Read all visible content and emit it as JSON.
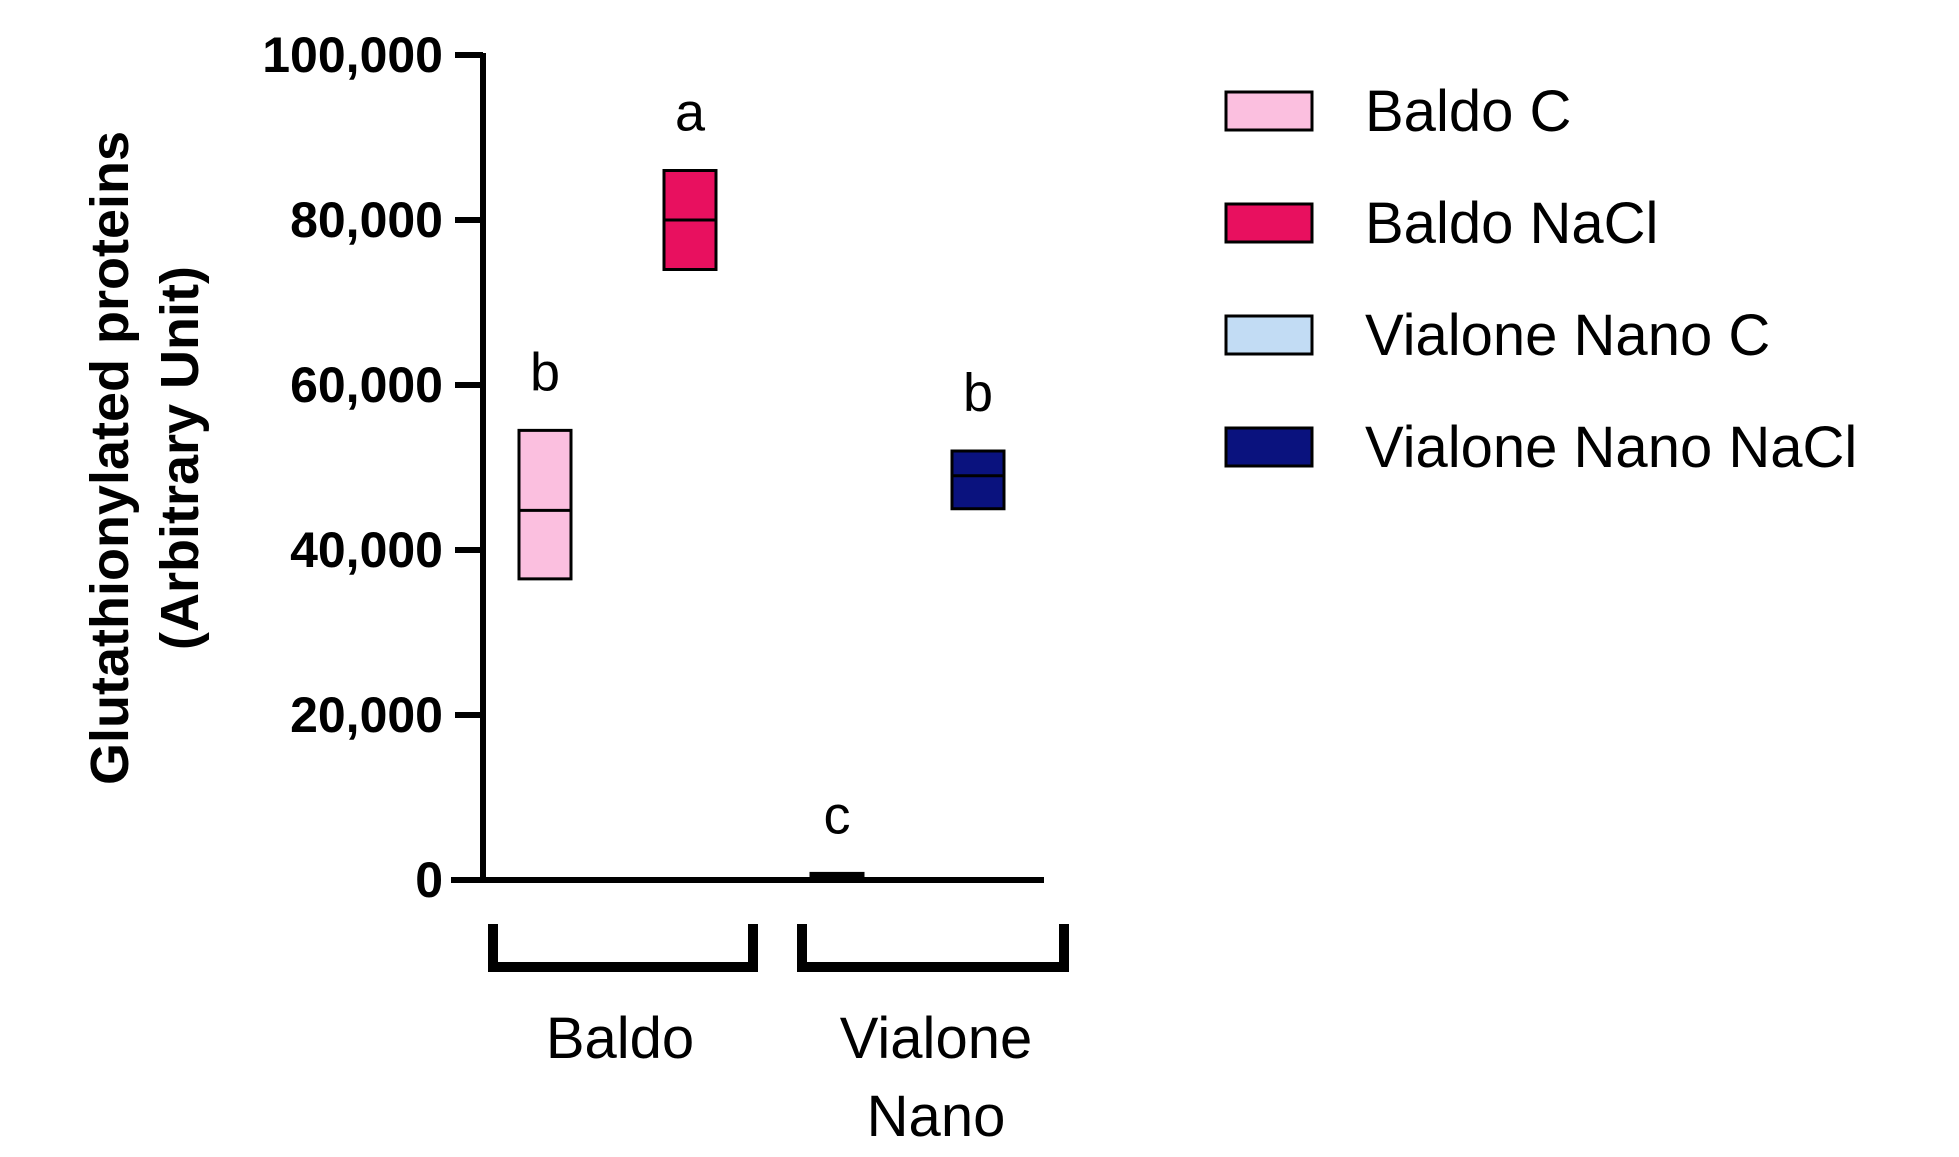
{
  "chart_data": {
    "type": "floating-bar",
    "ylabel_lines": [
      "Glutathionylated proteins",
      "(Arbitrary Unit)"
    ],
    "ylim": [
      0,
      100000
    ],
    "yticks": [
      0,
      20000,
      40000,
      60000,
      80000,
      100000
    ],
    "ytick_labels": [
      "0",
      "20,000",
      "40,000",
      "60,000",
      "80,000",
      "100,000"
    ],
    "groups": [
      {
        "label_lines": [
          "Baldo"
        ]
      },
      {
        "label_lines": [
          "Vialone",
          "Nano"
        ]
      }
    ],
    "series": [
      {
        "name": "Baldo C",
        "color": "#fbbfdf",
        "group": 0,
        "min": 36500,
        "max": 54500,
        "mean": 44800,
        "sig": "b"
      },
      {
        "name": "Baldo NaCl",
        "color": "#e8105f",
        "group": 0,
        "min": 74000,
        "max": 86000,
        "mean": 80000,
        "sig": "a"
      },
      {
        "name": "Vialone Nano C",
        "color": "#c2dcf4",
        "group": 1,
        "min": 200,
        "max": 800,
        "mean": 500,
        "sig": "c"
      },
      {
        "name": "Vialone Nano NaCl",
        "color": "#0a127e",
        "group": 1,
        "min": 45000,
        "max": 52000,
        "mean": 49000,
        "sig": "b"
      }
    ],
    "grid": false,
    "legend_position": "right"
  }
}
